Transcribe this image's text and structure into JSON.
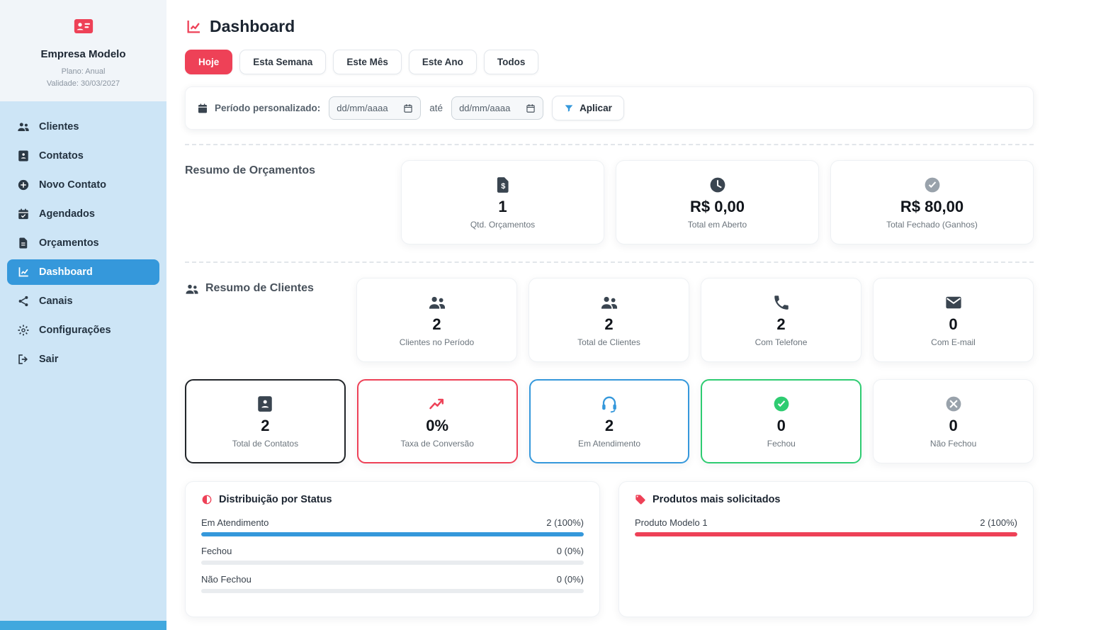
{
  "theme": {
    "accent_red": "#EE4157",
    "primary_blue": "#3598DB",
    "success_green": "#2ECC71",
    "neutral_dark": "#212529",
    "muted_gray": "#6C757D",
    "bar_track": "#E9ECEF",
    "sidebar_bg": "#CDE5F6",
    "sidebar_active_bg": "#3598DB",
    "sidebar_bottom_strip": "#41A8DE"
  },
  "icons": {
    "currency_glyph": "$"
  },
  "sidebar": {
    "company": {
      "name": "Empresa Modelo",
      "plan": "Plano: Anual",
      "validity": "Validade: 30/03/2027"
    },
    "items": [
      {
        "label": "Clientes",
        "active": false
      },
      {
        "label": "Contatos",
        "active": false
      },
      {
        "label": "Novo Contato",
        "active": false
      },
      {
        "label": "Agendados",
        "active": false
      },
      {
        "label": "Orçamentos",
        "active": false
      },
      {
        "label": "Dashboard",
        "active": true
      },
      {
        "label": "Canais",
        "active": false
      },
      {
        "label": "Configurações",
        "active": false
      },
      {
        "label": "Sair",
        "active": false
      }
    ]
  },
  "header": {
    "title": "Dashboard"
  },
  "filters": {
    "quick": [
      {
        "label": "Hoje",
        "active": true
      },
      {
        "label": "Esta Semana",
        "active": false
      },
      {
        "label": "Este Mês",
        "active": false
      },
      {
        "label": "Este Ano",
        "active": false
      },
      {
        "label": "Todos",
        "active": false
      }
    ],
    "custom_period": {
      "label": "Período personalizado:",
      "start_placeholder": "dd/mm/aaaa",
      "until_label": "até",
      "end_placeholder": "dd/mm/aaaa",
      "apply_label": "Aplicar"
    }
  },
  "resumo_orcamentos": {
    "title": "Resumo de Orçamentos",
    "cards": [
      {
        "value": "1",
        "label": "Qtd. Orçamentos"
      },
      {
        "value": "R$ 0,00",
        "label": "Total em Aberto"
      },
      {
        "value": "R$ 80,00",
        "label": "Total Fechado (Ganhos)"
      }
    ]
  },
  "resumo_clientes": {
    "title": "Resumo de Clientes",
    "row1": [
      {
        "value": "2",
        "label": "Clientes no Período"
      },
      {
        "value": "2",
        "label": "Total de Clientes"
      },
      {
        "value": "2",
        "label": "Com Telefone"
      },
      {
        "value": "0",
        "label": "Com E-mail"
      }
    ],
    "row2": [
      {
        "value": "2",
        "label": "Total de Contatos",
        "accent": "#212529"
      },
      {
        "value": "0%",
        "label": "Taxa de Conversão",
        "accent": "#EE4157"
      },
      {
        "value": "2",
        "label": "Em Atendimento",
        "accent": "#3598DB"
      },
      {
        "value": "0",
        "label": "Fechou",
        "accent": "#2ECC71"
      },
      {
        "value": "0",
        "label": "Não Fechou",
        "accent": "#E9ECEF"
      }
    ]
  },
  "status_panel": {
    "title": "Distribuição por Status",
    "rows": [
      {
        "label": "Em Atendimento",
        "value": "2 (100%)",
        "percent": 100,
        "color": "#3598DB"
      },
      {
        "label": "Fechou",
        "value": "0 (0%)",
        "percent": 0,
        "color": "#E9ECEF"
      },
      {
        "label": "Não Fechou",
        "value": "0 (0%)",
        "percent": 0,
        "color": "#E9ECEF"
      }
    ]
  },
  "products_panel": {
    "title": "Produtos mais solicitados",
    "rows": [
      {
        "label": "Produto Modelo 1",
        "value": "2 (100%)",
        "percent": 100,
        "color": "#EE4157"
      }
    ]
  }
}
